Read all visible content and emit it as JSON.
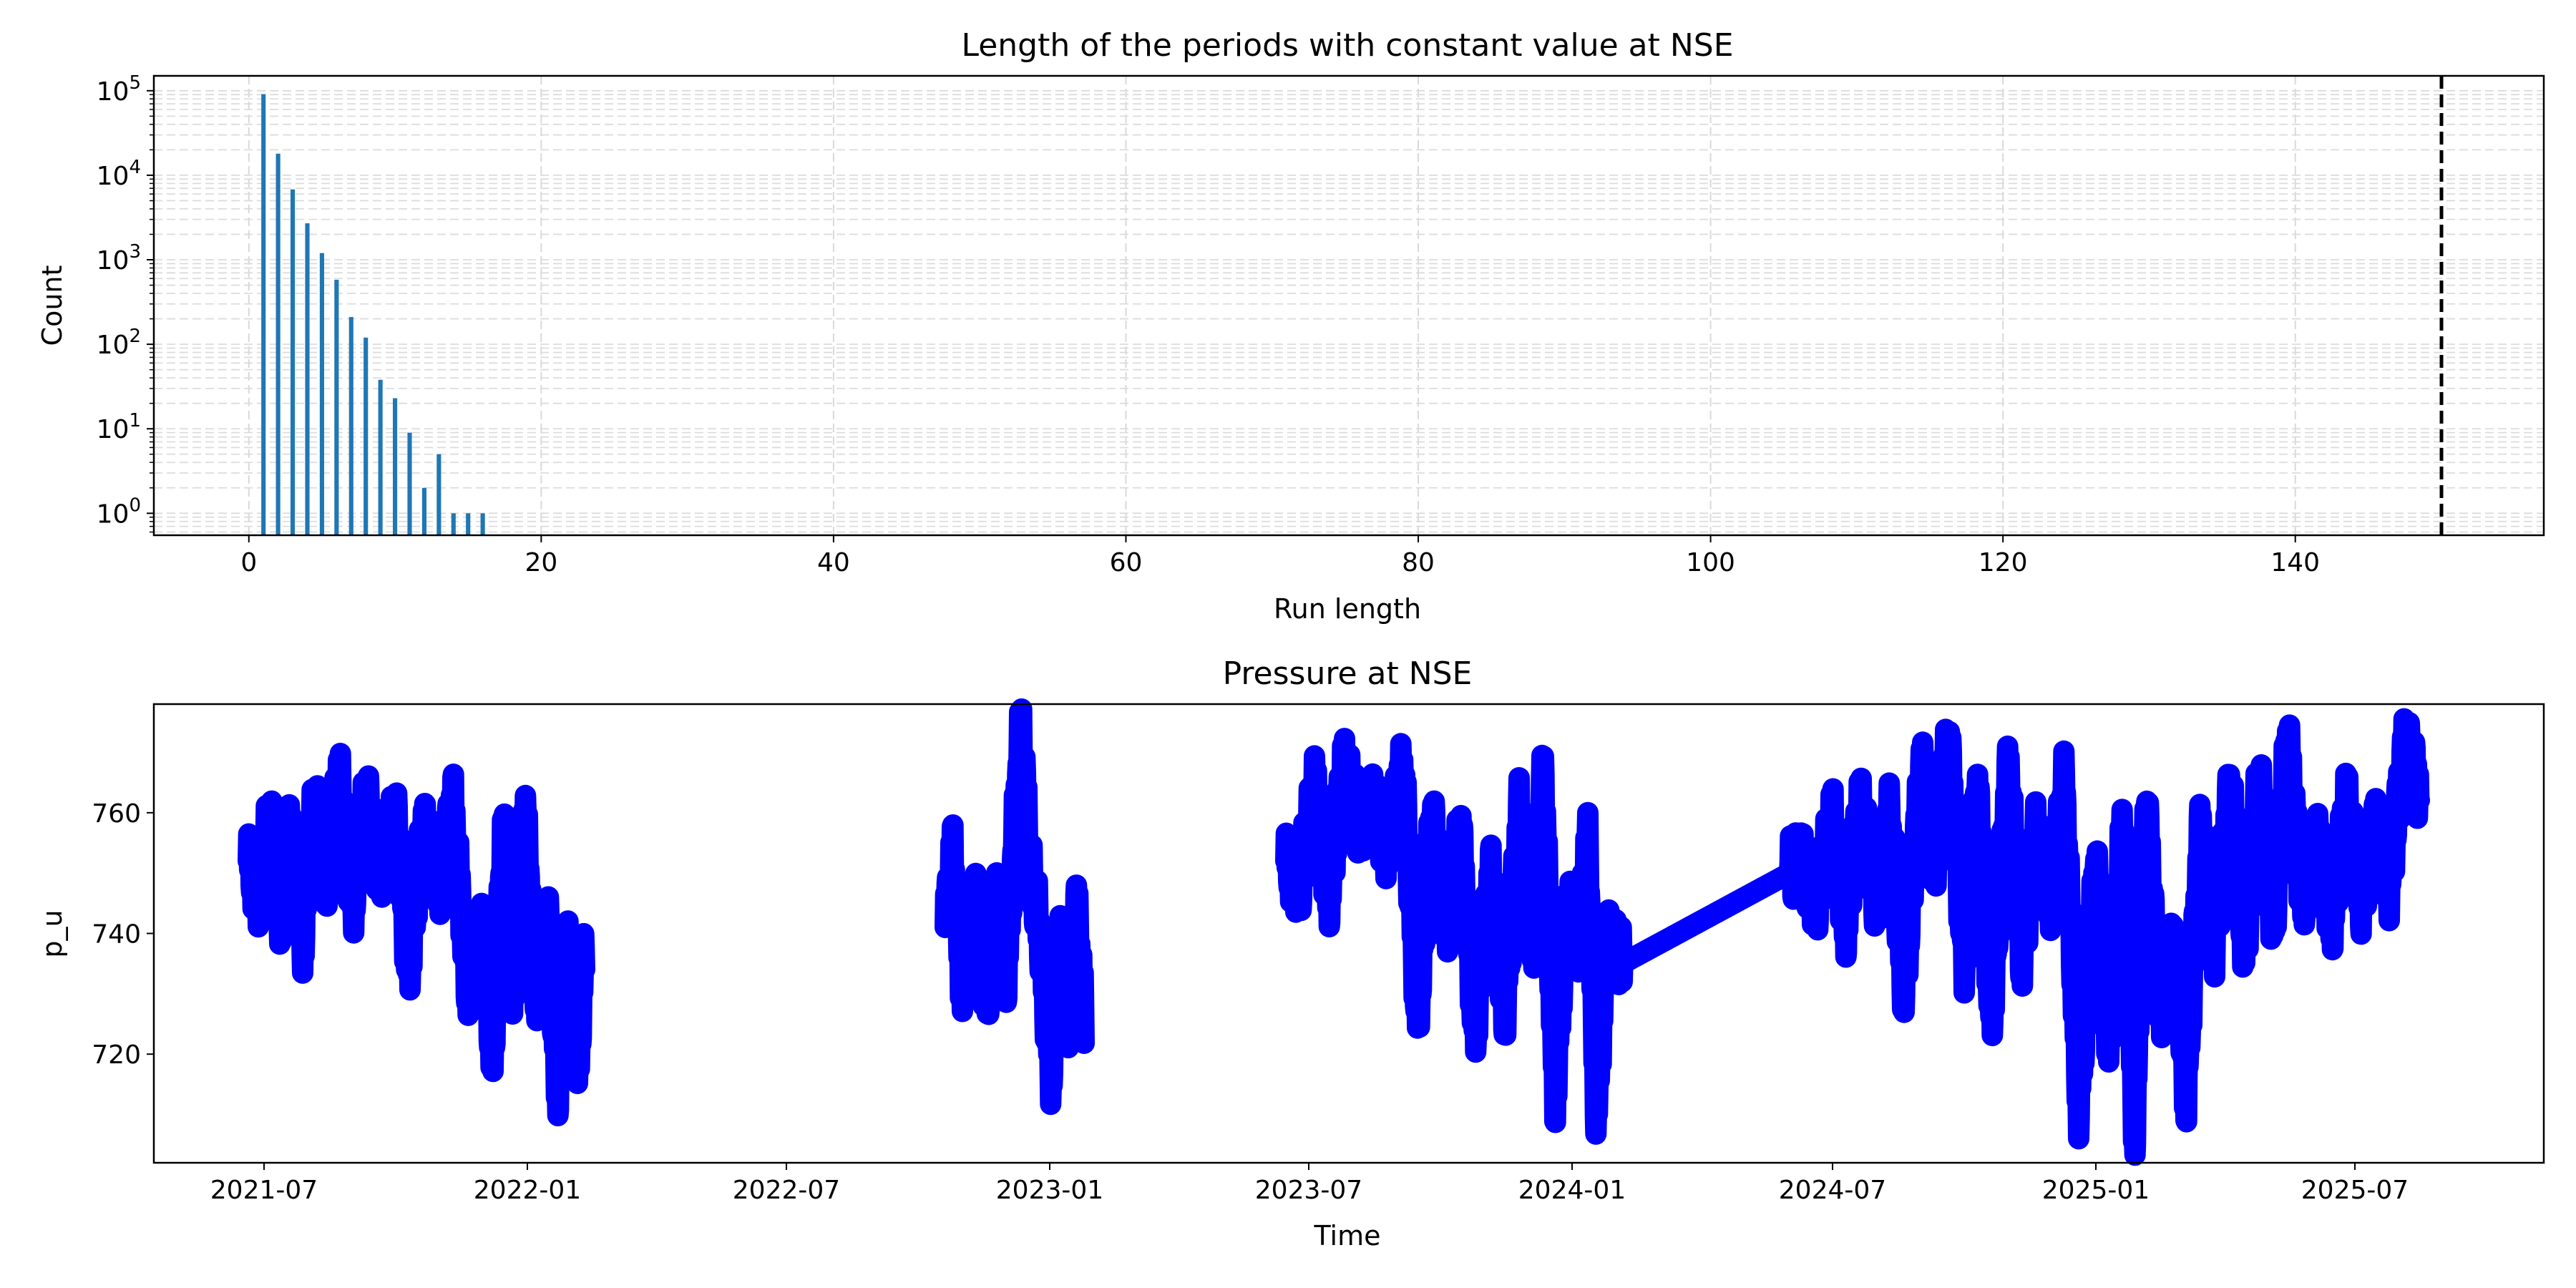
{
  "chart_data": [
    {
      "type": "bar",
      "title": "Length of the periods with constant value at NSE",
      "xlabel": "Run length",
      "ylabel": "Count",
      "yscale": "log",
      "xlim": [
        -6.5,
        157
      ],
      "ylim": [
        0.55,
        150000
      ],
      "grid": {
        "x": "major dashed",
        "y": "major and minor dashed"
      },
      "x": [
        1,
        2,
        3,
        4,
        5,
        6,
        7,
        8,
        9,
        10,
        11,
        12,
        13,
        14,
        15,
        16
      ],
      "values": [
        91000,
        18000,
        6800,
        2700,
        1200,
        580,
        210,
        120,
        38,
        23,
        9,
        2,
        5,
        1,
        1,
        1
      ],
      "color": "#1f77b4",
      "threshold_line": {
        "x": 150,
        "style": "dashed",
        "color": "#000000"
      },
      "xticks": [
        "0",
        "20",
        "40",
        "60",
        "80",
        "100",
        "120",
        "140"
      ],
      "yticks": [
        {
          "value": 1,
          "base": "10",
          "exp": "0"
        },
        {
          "value": 10,
          "base": "10",
          "exp": "1"
        },
        {
          "value": 100,
          "base": "10",
          "exp": "2"
        },
        {
          "value": 1000,
          "base": "10",
          "exp": "3"
        },
        {
          "value": 10000,
          "base": "10",
          "exp": "4"
        },
        {
          "value": 100000,
          "base": "10",
          "exp": "5"
        }
      ]
    },
    {
      "type": "line",
      "title": "Pressure at NSE",
      "xlabel": "Time",
      "ylabel": "p_u",
      "xlim": [
        "2021-04-15",
        "2025-11-10"
      ],
      "ylim": [
        702,
        778
      ],
      "grid": false,
      "color": "#0000ff",
      "xticks": [
        "2021-07",
        "2022-01",
        "2022-07",
        "2023-01",
        "2023-07",
        "2024-01",
        "2024-07",
        "2025-01",
        "2025-07"
      ],
      "yticks": [
        "720",
        "740",
        "760"
      ],
      "series": [
        {
          "segments": [
            {
              "start": "2021-06-20",
              "end": "2022-02-10",
              "points": [
                [
                  "2021-06-20",
                  752
                ],
                [
                  "2021-06-28",
                  746
                ],
                [
                  "2021-07-05",
                  760
                ],
                [
                  "2021-07-12",
                  742
                ],
                [
                  "2021-07-20",
                  758
                ],
                [
                  "2021-07-28",
                  738
                ],
                [
                  "2021-08-05",
                  762
                ],
                [
                  "2021-08-15",
                  747
                ],
                [
                  "2021-08-22",
                  767
                ],
                [
                  "2021-09-01",
                  744
                ],
                [
                  "2021-09-10",
                  763
                ],
                [
                  "2021-09-20",
                  750
                ],
                [
                  "2021-10-01",
                  760
                ],
                [
                  "2021-10-10",
                  733
                ],
                [
                  "2021-10-20",
                  758
                ],
                [
                  "2021-11-01",
                  748
                ],
                [
                  "2021-11-10",
                  762
                ],
                [
                  "2021-11-20",
                  731
                ],
                [
                  "2021-12-01",
                  740
                ],
                [
                  "2021-12-08",
                  718
                ],
                [
                  "2021-12-15",
                  758
                ],
                [
                  "2021-12-22",
                  730
                ],
                [
                  "2021-12-30",
                  762
                ],
                [
                  "2022-01-08",
                  727
                ],
                [
                  "2022-01-15",
                  745
                ],
                [
                  "2022-01-22",
                  713
                ],
                [
                  "2022-01-29",
                  740
                ],
                [
                  "2022-02-05",
                  716
                ],
                [
                  "2022-02-10",
                  737
                ]
              ]
            },
            {
              "start": "2022-10-20",
              "end": "2023-01-25",
              "points": [
                [
                  "2022-10-20",
                  741
                ],
                [
                  "2022-10-25",
                  754
                ],
                [
                  "2022-11-01",
                  730
                ],
                [
                  "2022-11-10",
                  746
                ],
                [
                  "2022-11-18",
                  728
                ],
                [
                  "2022-11-25",
                  745
                ],
                [
                  "2022-12-02",
                  733
                ],
                [
                  "2022-12-08",
                  760
                ],
                [
                  "2022-12-12",
                  775
                ],
                [
                  "2022-12-18",
                  752
                ],
                [
                  "2022-12-25",
                  740
                ],
                [
                  "2023-01-02",
                  716
                ],
                [
                  "2023-01-08",
                  738
                ],
                [
                  "2023-01-15",
                  725
                ],
                [
                  "2023-01-20",
                  745
                ],
                [
                  "2023-01-25",
                  726
                ]
              ]
            },
            {
              "start": "2023-06-15",
              "end": "2024-06-10",
              "points": [
                [
                  "2023-06-15",
                  752
                ],
                [
                  "2023-06-25",
                  748
                ],
                [
                  "2023-07-05",
                  765
                ],
                [
                  "2023-07-15",
                  745
                ],
                [
                  "2023-07-25",
                  768
                ],
                [
                  "2023-08-05",
                  758
                ],
                [
                  "2023-08-15",
                  761
                ],
                [
                  "2023-08-25",
                  754
                ],
                [
                  "2023-09-05",
                  768
                ],
                [
                  "2023-09-15",
                  725
                ],
                [
                  "2023-09-25",
                  760
                ],
                [
                  "2023-10-05",
                  740
                ],
                [
                  "2023-10-15",
                  758
                ],
                [
                  "2023-10-25",
                  723
                ],
                [
                  "2023-11-05",
                  750
                ],
                [
                  "2023-11-15",
                  726
                ],
                [
                  "2023-11-25",
                  760
                ],
                [
                  "2023-12-05",
                  738
                ],
                [
                  "2023-12-12",
                  768
                ],
                [
                  "2023-12-20",
                  712
                ],
                [
                  "2023-12-28",
                  745
                ],
                [
                  "2024-01-05",
                  738
                ],
                [
                  "2024-01-12",
                  755
                ],
                [
                  "2024-01-18",
                  709
                ],
                [
                  "2024-01-25",
                  740
                ],
                [
                  "2024-02-05",
                  735
                ],
                [
                  "2024-06-01",
                  750
                ],
                [
                  "2024-06-10",
                  752
                ]
              ]
            },
            {
              "start": "2024-06-10",
              "end": "2025-08-15",
              "points": [
                [
                  "2024-06-10",
                  752
                ],
                [
                  "2024-06-20",
                  745
                ],
                [
                  "2024-07-01",
                  760
                ],
                [
                  "2024-07-10",
                  740
                ],
                [
                  "2024-07-20",
                  762
                ],
                [
                  "2024-08-01",
                  744
                ],
                [
                  "2024-08-10",
                  760
                ],
                [
                  "2024-08-20",
                  730
                ],
                [
                  "2024-09-01",
                  768
                ],
                [
                  "2024-09-10",
                  750
                ],
                [
                  "2024-09-20",
                  773
                ],
                [
                  "2024-10-01",
                  735
                ],
                [
                  "2024-10-10",
                  765
                ],
                [
                  "2024-10-20",
                  725
                ],
                [
                  "2024-11-01",
                  768
                ],
                [
                  "2024-11-10",
                  735
                ],
                [
                  "2024-11-20",
                  756
                ],
                [
                  "2024-12-01",
                  745
                ],
                [
                  "2024-12-10",
                  765
                ],
                [
                  "2024-12-20",
                  711
                ],
                [
                  "2025-01-01",
                  752
                ],
                [
                  "2025-01-10",
                  720
                ],
                [
                  "2025-01-20",
                  760
                ],
                [
                  "2025-01-28",
                  705
                ],
                [
                  "2025-02-05",
                  763
                ],
                [
                  "2025-02-15",
                  725
                ],
                [
                  "2025-02-25",
                  740
                ],
                [
                  "2025-03-05",
                  712
                ],
                [
                  "2025-03-15",
                  758
                ],
                [
                  "2025-03-25",
                  738
                ],
                [
                  "2025-04-05",
                  765
                ],
                [
                  "2025-04-15",
                  736
                ],
                [
                  "2025-04-25",
                  767
                ],
                [
                  "2025-05-05",
                  740
                ],
                [
                  "2025-05-15",
                  773
                ],
                [
                  "2025-05-25",
                  745
                ],
                [
                  "2025-06-05",
                  755
                ],
                [
                  "2025-06-15",
                  741
                ],
                [
                  "2025-06-25",
                  763
                ],
                [
                  "2025-07-05",
                  745
                ],
                [
                  "2025-07-15",
                  758
                ],
                [
                  "2025-07-25",
                  748
                ],
                [
                  "2025-08-05",
                  772
                ],
                [
                  "2025-08-15",
                  764
                ]
              ]
            }
          ]
        }
      ]
    }
  ]
}
